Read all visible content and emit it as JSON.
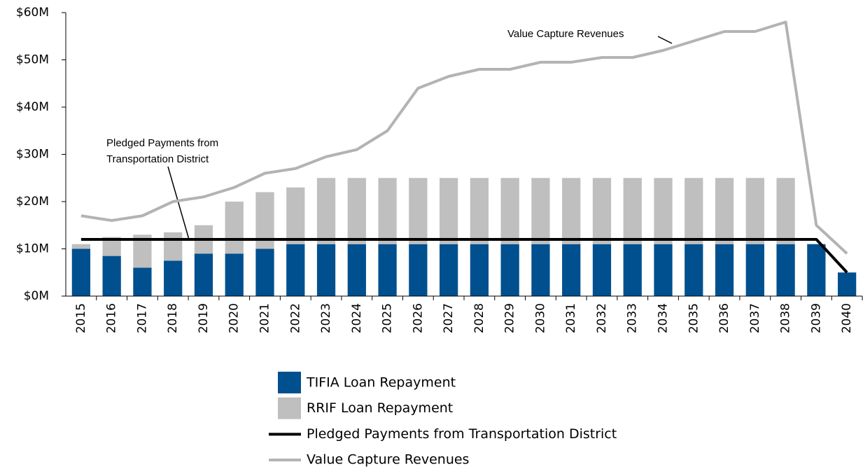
{
  "chart_data": {
    "type": "bar",
    "stacked": true,
    "categories": [
      "2015",
      "2016",
      "2017",
      "2018",
      "2019",
      "2020",
      "2021",
      "2022",
      "2023",
      "2024",
      "2025",
      "2026",
      "2027",
      "2028",
      "2029",
      "2030",
      "2031",
      "2032",
      "2033",
      "2034",
      "2035",
      "2036",
      "2037",
      "2038",
      "2039",
      "2040"
    ],
    "series": [
      {
        "name": "TIFIA Loan Repayment",
        "type": "bar",
        "color": "#00508f",
        "values": [
          10,
          8.5,
          6,
          7.5,
          9,
          9,
          10,
          11,
          11,
          11,
          11,
          11,
          11,
          11,
          11,
          11,
          11,
          11,
          11,
          11,
          11,
          11,
          11,
          11,
          11,
          5
        ]
      },
      {
        "name": "RRIF Loan Repayment",
        "type": "bar",
        "color": "#bfbfbf",
        "values": [
          1,
          4,
          7,
          6,
          6,
          11,
          12,
          12,
          14,
          14,
          14,
          14,
          14,
          14,
          14,
          14,
          14,
          14,
          14,
          14,
          14,
          14,
          14,
          14,
          0,
          0
        ]
      },
      {
        "name": "Pledged Payments from Transportation District",
        "type": "line",
        "color": "#000000",
        "values": [
          12,
          12,
          12,
          12,
          12,
          12,
          12,
          12,
          12,
          12,
          12,
          12,
          12,
          12,
          12,
          12,
          12,
          12,
          12,
          12,
          12,
          12,
          12,
          12,
          12,
          5
        ]
      },
      {
        "name": "Value Capture Revenues",
        "type": "line",
        "color": "#b3b3b3",
        "values": [
          17,
          16,
          17,
          20,
          21,
          23,
          26,
          27,
          29.5,
          31,
          35,
          44,
          46.5,
          48,
          48,
          49.5,
          49.5,
          50.5,
          50.5,
          52,
          54,
          56,
          56,
          58,
          15,
          9
        ]
      }
    ],
    "ylim": [
      0,
      60
    ],
    "yticks": [
      {
        "value": 0,
        "label": "$0M"
      },
      {
        "value": 10,
        "label": "$10M"
      },
      {
        "value": 20,
        "label": "$20M"
      },
      {
        "value": 30,
        "label": "$30M"
      },
      {
        "value": 40,
        "label": "$40M"
      },
      {
        "value": 50,
        "label": "$50M"
      },
      {
        "value": 60,
        "label": "$60M"
      }
    ],
    "annotations": [
      {
        "lines": [
          "Value Capture Revenues"
        ]
      },
      {
        "lines": [
          "Pledged Payments from",
          "Transportation District"
        ]
      }
    ],
    "legend": "bottom"
  }
}
